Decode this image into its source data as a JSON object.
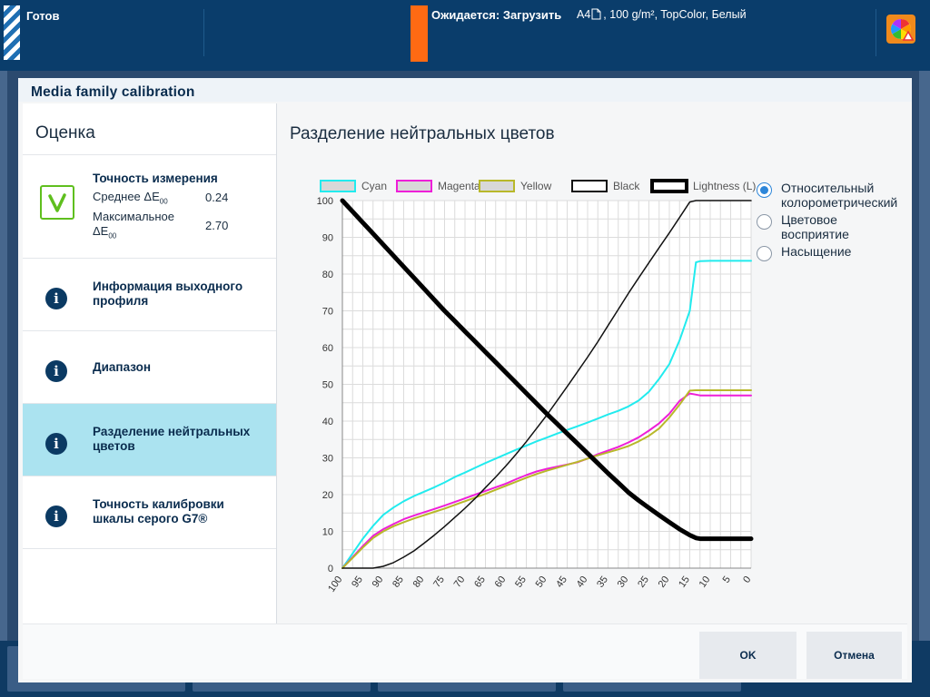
{
  "topbar": {
    "status": "Готов",
    "job_label": "Ожидается: Загрузить",
    "paper_size": "A4",
    "paper_desc": ", 100 g/m², TopColor, Белый",
    "app_icon": "color-wheel-warning-icon"
  },
  "dialog": {
    "title": "Media family calibration",
    "left_title": "Оценка",
    "items": [
      {
        "label": "Точность измерения",
        "icon": "check-icon",
        "metrics": [
          {
            "name": "Среднее ΔE",
            "sub": "00",
            "value": "0.24"
          },
          {
            "name": "Максимальное ΔE",
            "sub": "00",
            "value": "2.70"
          }
        ]
      },
      {
        "label": "Информация выходного профиля",
        "icon": "info-icon"
      },
      {
        "label": "Диапазон",
        "icon": "info-icon"
      },
      {
        "label": "Разделение нейтральных цветов",
        "icon": "info-icon",
        "active": true
      },
      {
        "label": "Точность калибровки шкалы серого G7®",
        "icon": "info-icon"
      }
    ],
    "content_title": "Разделение нейтральных цветов",
    "radios": [
      {
        "label": "Относительный колорометрический",
        "checked": true
      },
      {
        "label": "Цветовое восприятие",
        "checked": false
      },
      {
        "label": "Насыщение",
        "checked": false
      }
    ],
    "buttons": {
      "ok": "OK",
      "cancel": "Отмена"
    }
  },
  "chart_data": {
    "type": "line",
    "x": [
      100,
      97.5,
      95,
      92.5,
      90,
      87.5,
      85,
      82.5,
      80,
      77.5,
      75,
      72.5,
      70,
      67.5,
      65,
      62.5,
      60,
      57.5,
      55,
      52.5,
      50,
      47.5,
      45,
      42.5,
      40,
      37.5,
      35,
      32.5,
      30,
      27.5,
      25,
      22.5,
      20,
      17.5,
      15,
      13.5,
      12.5,
      10,
      7.5,
      5,
      2.5,
      0
    ],
    "xticks": [
      100,
      95,
      90,
      85,
      80,
      75,
      70,
      65,
      60,
      55,
      50,
      45,
      40,
      35,
      30,
      25,
      20,
      15,
      10,
      5,
      0
    ],
    "yticks": [
      0,
      10,
      20,
      30,
      40,
      50,
      60,
      70,
      80,
      90,
      100
    ],
    "xlim": [
      100,
      0
    ],
    "ylim": [
      0,
      100
    ],
    "grid": true,
    "legend": "top",
    "series": [
      {
        "name": "Cyan",
        "color": "#22ebee",
        "width": 2,
        "values": [
          0,
          4,
          8,
          11.5,
          14.5,
          16.5,
          18.2,
          19.6,
          20.8,
          22,
          23.3,
          24.8,
          26,
          27.3,
          28.6,
          29.8,
          31,
          32.2,
          33.3,
          34.5,
          35.5,
          36.6,
          37.6,
          38.6,
          39.6,
          40.7,
          41.8,
          42.8,
          44,
          45.6,
          48,
          51.5,
          55.5,
          62,
          70,
          83.2,
          83.5,
          83.6,
          83.6,
          83.6,
          83.6,
          83.6
        ]
      },
      {
        "name": "Magenta",
        "color": "#ee1fd8",
        "width": 2,
        "values": [
          0,
          3,
          6,
          8.8,
          10.6,
          12,
          13.3,
          14.3,
          15.2,
          16.1,
          17,
          18,
          19,
          20,
          21,
          22,
          23,
          24.2,
          25.3,
          26.3,
          27,
          27.6,
          28.2,
          28.8,
          29.8,
          31,
          32,
          33,
          34.2,
          35.6,
          37.4,
          39.4,
          42,
          45.5,
          47.5,
          47.2,
          47,
          47,
          47,
          47,
          47,
          47
        ]
      },
      {
        "name": "Yellow",
        "color": "#b8b82a",
        "width": 2,
        "values": [
          0,
          2.8,
          5.6,
          8.2,
          10,
          11.4,
          12.5,
          13.5,
          14.4,
          15.3,
          16.2,
          17.2,
          18.2,
          19.2,
          20.2,
          21.3,
          22.4,
          23.5,
          24.6,
          25.6,
          26.5,
          27.3,
          28.1,
          28.9,
          29.8,
          30.7,
          31.5,
          32.3,
          33.2,
          34.5,
          36,
          38,
          41,
          44.5,
          48.3,
          48.4,
          48.4,
          48.4,
          48.4,
          48.4,
          48.4,
          48.4
        ]
      },
      {
        "name": "Black",
        "color": "#111111",
        "width": 1.5,
        "values": [
          0,
          0,
          0,
          0,
          0.5,
          1.5,
          3,
          4.7,
          6.8,
          9,
          11.3,
          13.8,
          16.3,
          19,
          21.9,
          24.8,
          27.8,
          31,
          34.4,
          38,
          41.6,
          45.5,
          49.4,
          53.4,
          57.4,
          61.6,
          66,
          70.4,
          74.8,
          79,
          83.1,
          87.2,
          91.2,
          95.4,
          99.6,
          100,
          100,
          100,
          100,
          100,
          100,
          100
        ]
      },
      {
        "name": "Lightness (L)",
        "color": "#000000",
        "width": 5,
        "values": [
          100,
          97,
          94,
          91,
          88,
          85,
          82,
          79,
          76,
          73,
          70,
          67.2,
          64.4,
          61.6,
          58.8,
          56,
          53.2,
          50.4,
          47.6,
          44.8,
          42,
          39.3,
          36.6,
          33.9,
          31.2,
          28.5,
          25.8,
          23.2,
          20.6,
          18.4,
          16.4,
          14.4,
          12.5,
          10.6,
          9,
          8.2,
          8,
          8,
          8,
          8,
          8,
          8
        ]
      }
    ]
  }
}
